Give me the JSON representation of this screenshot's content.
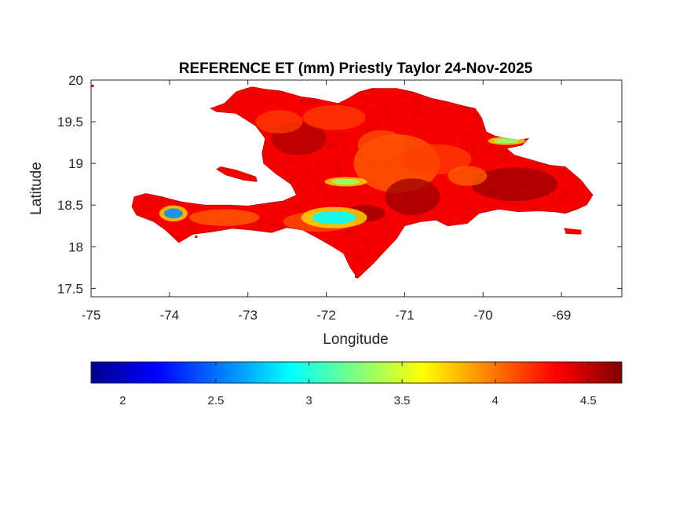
{
  "chart_data": {
    "type": "heatmap",
    "title": "REFERENCE ET (mm) Priestly Taylor 24-Nov-2025",
    "xlabel": "Longitude",
    "ylabel": "Latitude",
    "xlim": [
      -75,
      -68.23
    ],
    "ylim": [
      17.4,
      20
    ],
    "xticks": [
      "-75",
      "-74",
      "-73",
      "-72",
      "-71",
      "-70",
      "-69"
    ],
    "xtick_values": [
      -75,
      -74,
      -73,
      -72,
      -71,
      -70,
      -69
    ],
    "yticks": [
      "17.5",
      "18",
      "18.5",
      "19",
      "19.5",
      "20"
    ],
    "ytick_values": [
      17.5,
      18,
      18.5,
      19,
      19.5,
      20
    ],
    "colormap": "jet",
    "color_range": [
      1.83,
      4.68
    ],
    "colorbar_ticks": [
      "2",
      "2.5",
      "3",
      "3.5",
      "4",
      "4.5"
    ],
    "colorbar_tick_values": [
      2,
      2.5,
      3,
      3.5,
      4,
      4.5
    ],
    "colorbar_location": "southoutside",
    "typical_value": 4.35,
    "value_range_on_land": [
      2.3,
      4.7
    ],
    "region": "Hispaniola (Haiti and Dominican Republic)",
    "low_value_areas": [
      {
        "lon": -73.95,
        "lat": 18.4,
        "value": 2.6
      },
      {
        "lon": -71.9,
        "lat": 18.35,
        "value": 2.9
      },
      {
        "lon": -71.75,
        "lat": 18.78,
        "value": 3.3
      },
      {
        "lon": -69.7,
        "lat": 19.27,
        "value": 3.3
      }
    ]
  }
}
